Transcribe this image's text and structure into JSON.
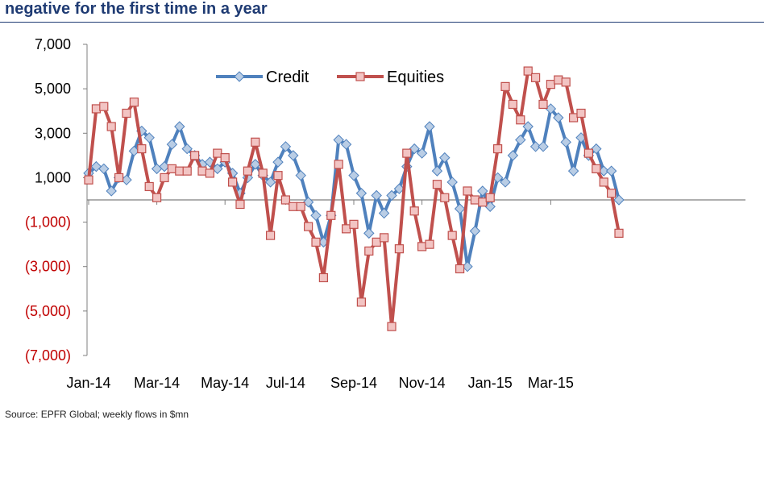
{
  "title": "negative for the first time in a year",
  "source": "Source: EPFR Global; weekly flows in $mn",
  "chart_data": {
    "type": "line",
    "title": "negative for the first time in a year",
    "xlabel": "",
    "ylabel": "",
    "ylim": [
      -7000,
      7000
    ],
    "y_ticks": [
      7000,
      5000,
      3000,
      1000,
      -1000,
      -3000,
      -5000,
      -7000
    ],
    "y_tick_labels": [
      "7,000",
      "5,000",
      "3,000",
      "1,000",
      "(1,000)",
      "(3,000)",
      "(5,000)",
      "(7,000)"
    ],
    "negative_tick_color": "#c00000",
    "x_tick_labels": [
      "Jan-14",
      "Mar-14",
      "May-14",
      "Jul-14",
      "Sep-14",
      "Nov-14",
      "Jan-15",
      "Mar-15"
    ],
    "x_tick_index": [
      0,
      9,
      18,
      26,
      35,
      44,
      53,
      61
    ],
    "legend": {
      "position": "top-center",
      "entries": [
        "Credit",
        "Equities"
      ]
    },
    "series": [
      {
        "name": "Credit",
        "color": "#4f81bd",
        "marker_fill": "#b9cde5",
        "marker": "diamond",
        "values": [
          1200,
          1500,
          1400,
          400,
          1000,
          900,
          2200,
          3100,
          2800,
          1400,
          1500,
          2500,
          3300,
          2300,
          2000,
          1600,
          1700,
          1400,
          1700,
          1200,
          300,
          1000,
          1600,
          1100,
          800,
          1700,
          2400,
          2000,
          1100,
          -100,
          -700,
          -1900,
          -700,
          2700,
          2500,
          1100,
          300,
          -1500,
          200,
          -600,
          200,
          500,
          1500,
          2300,
          2100,
          3300,
          1300,
          1900,
          800,
          -400,
          -3000,
          -1400,
          400,
          -300,
          1000,
          800,
          2000,
          2700,
          3300,
          2400,
          2400,
          4100,
          3700,
          2600,
          1300,
          2800,
          2000,
          2300,
          1300,
          1300,
          0
        ]
      },
      {
        "name": "Equities",
        "color": "#c0504d",
        "marker_fill": "#f2c4c3",
        "marker": "square",
        "values": [
          900,
          4100,
          4200,
          3300,
          1000,
          3900,
          4400,
          2300,
          600,
          100,
          1000,
          1400,
          1300,
          1300,
          2000,
          1300,
          1200,
          2100,
          1900,
          800,
          -200,
          1300,
          2600,
          1200,
          -1600,
          1100,
          0,
          -300,
          -300,
          -1200,
          -1900,
          -3500,
          -700,
          1600,
          -1300,
          -1100,
          -4600,
          -2300,
          -1900,
          -1700,
          -5700,
          -2200,
          2100,
          -500,
          -2100,
          -2000,
          700,
          100,
          -1600,
          -3100,
          400,
          0,
          -100,
          100,
          2300,
          5100,
          4300,
          3600,
          5800,
          5500,
          4300,
          5200,
          5400,
          5300,
          3700,
          3900,
          2100,
          1400,
          800,
          300,
          -1500
        ]
      }
    ]
  }
}
